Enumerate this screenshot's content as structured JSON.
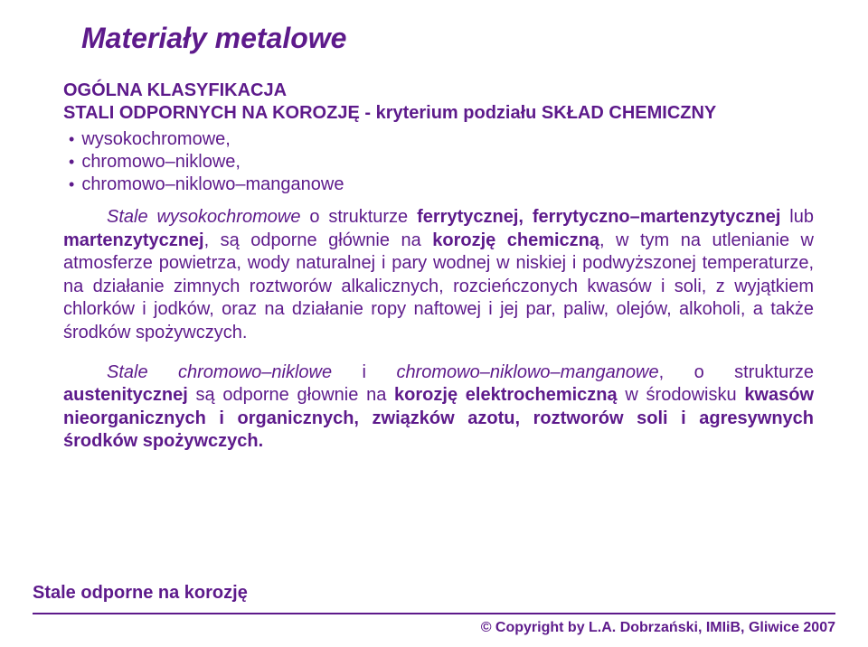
{
  "colors": {
    "text": "#5d1a8b",
    "background": "#ffffff",
    "line": "#5d1a8b"
  },
  "typography": {
    "title_fontsize": 32,
    "subtitle_fontsize": 20,
    "body_fontsize": 20,
    "footer_left_fontsize": 20,
    "footer_right_fontsize": 16,
    "font_family": "Arial"
  },
  "title": "Materiały metalowe",
  "subtitle": {
    "line1": "OGÓLNA KLASYFIKACJA",
    "line2": "STALI ODPORNYCH NA KOROZJĘ - kryterium podziału SKŁAD CHEMICZNY"
  },
  "bullets": [
    "wysokochromowe,",
    "chromowo–niklowe,",
    "chromowo–niklowo–manganowe"
  ],
  "para1": {
    "t0": "Stale wysokochromowe",
    "t1": " o strukturze ",
    "t2": "ferrytycznej, ferrytyczno–martenzytycznej",
    "t3": " lub ",
    "t4": "martenzytycznej",
    "t5": ", są odporne głównie na ",
    "t6": "korozję chemiczną",
    "t7": ", w tym na utlenianie w atmosferze powietrza, wody naturalnej i pary wodnej w niskiej i podwyższonej temperaturze, na działanie zimnych roztworów alkalicznych, rozcieńczonych kwasów i soli, z wyjątkiem chlorków i jodków, oraz na działanie ropy naftowej i jej par, paliw, olejów, alkoholi, a także środków spożywczych."
  },
  "para2": {
    "t0": "Stale chromowo–niklowe",
    "t1": " i ",
    "t2": "chromowo–niklowo–manganowe",
    "t3": ", o strukturze ",
    "t4": "austenitycznej",
    "t5": " są odporne głownie na ",
    "t6": "korozję elektrochemiczną",
    "t7": " w środowisku ",
    "t8": "kwasów nieorganicznych i organicznych, związków azotu, roztworów soli i agresywnych środków spożywczych."
  },
  "footer": {
    "left": "Stale odporne na korozję",
    "right": "© Copyright by L.A. Dobrzański, IMIiB, Gliwice 2007"
  }
}
